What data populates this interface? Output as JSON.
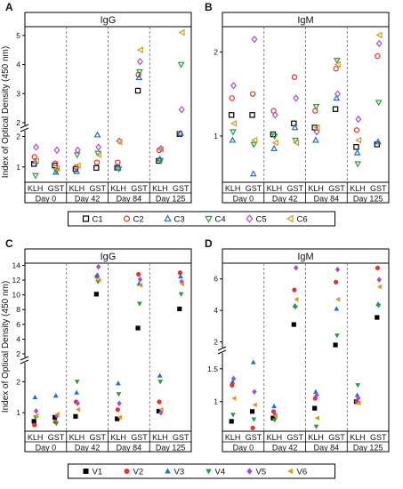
{
  "figure": {
    "y_axis_label": "Index of Optical Density (450 nm)",
    "legend_top": [
      "C1",
      "C2",
      "C3",
      "C4",
      "C5",
      "C6"
    ],
    "legend_bottom": [
      "V1",
      "V2",
      "V3",
      "V4",
      "V5",
      "V6"
    ]
  },
  "chart_data": [
    {
      "type": "scatter",
      "panel_letter": "A",
      "title": "IgG",
      "ylabel": "Index of Optical Density (450 nm)",
      "group_labels": [
        "Day 0",
        "Day 42",
        "Day 84",
        "Day 125"
      ],
      "category_labels": [
        "KLH",
        "GST"
      ],
      "lower_ylim": [
        0.5,
        2.1
      ],
      "upper_ylim": [
        2.0,
        5.3
      ],
      "lower_ticks": [
        1,
        2
      ],
      "upper_ticks": [
        2,
        3,
        4,
        5
      ],
      "series": [
        {
          "name": "C1",
          "values": [
            [
              1.1,
              1.05
            ],
            [
              0.93,
              0.97
            ],
            [
              0.97,
              3.1
            ],
            [
              1.2,
              2.08
            ]
          ]
        },
        {
          "name": "C2",
          "values": [
            [
              1.33,
              1.12
            ],
            [
              1.0,
              1.15
            ],
            [
              1.15,
              3.65
            ],
            [
              1.55,
              2.1
            ]
          ]
        },
        {
          "name": "C3",
          "values": [
            [
              1.18,
              0.83
            ],
            [
              0.85,
              2.05
            ],
            [
              0.96,
              3.55
            ],
            [
              1.26,
              2.1
            ]
          ]
        },
        {
          "name": "C4",
          "values": [
            [
              0.72,
              0.88
            ],
            [
              1.4,
              1.45
            ],
            [
              0.94,
              3.75
            ],
            [
              1.22,
              4.0
            ]
          ]
        },
        {
          "name": "C5",
          "values": [
            [
              1.65,
              1.55
            ],
            [
              1.55,
              1.65
            ],
            [
              1.85,
              4.1
            ],
            [
              1.6,
              2.45
            ]
          ]
        },
        {
          "name": "C6",
          "values": [
            [
              1.2,
              0.95
            ],
            [
              1.05,
              1.4
            ],
            [
              1.82,
              4.5
            ],
            [
              1.58,
              5.1
            ]
          ]
        }
      ]
    },
    {
      "type": "scatter",
      "panel_letter": "B",
      "title": "IgM",
      "ylabel": "",
      "group_labels": [
        "Day 0",
        "Day 42",
        "Day 84",
        "Day 125"
      ],
      "category_labels": [
        "KLH",
        "GST"
      ],
      "lower_ylim": [
        0.45,
        2.3
      ],
      "upper_ylim": [],
      "lower_ticks": [
        1,
        2
      ],
      "upper_ticks": [],
      "series": [
        {
          "name": "C1",
          "values": [
            [
              1.25,
              1.25
            ],
            [
              1.02,
              1.15
            ],
            [
              1.1,
              1.32
            ],
            [
              0.87,
              0.9
            ]
          ]
        },
        {
          "name": "C2",
          "values": [
            [
              1.45,
              1.5
            ],
            [
              1.3,
              1.7
            ],
            [
              1.3,
              1.8
            ],
            [
              1.07,
              1.95
            ]
          ]
        },
        {
          "name": "C3",
          "values": [
            [
              0.95,
              0.55
            ],
            [
              0.85,
              1.1
            ],
            [
              0.95,
              1.45
            ],
            [
              0.8,
              0.93
            ]
          ]
        },
        {
          "name": "C4",
          "values": [
            [
              1.05,
              0.9
            ],
            [
              1.0,
              0.95
            ],
            [
              1.35,
              1.9
            ],
            [
              0.67,
              1.4
            ]
          ]
        },
        {
          "name": "C5",
          "values": [
            [
              1.6,
              2.15
            ],
            [
              1.25,
              1.45
            ],
            [
              1.05,
              1.5
            ],
            [
              1.2,
              2.1
            ]
          ]
        },
        {
          "name": "C6",
          "values": [
            [
              1.15,
              0.95
            ],
            [
              0.92,
              0.92
            ],
            [
              1.1,
              1.85
            ],
            [
              0.95,
              2.2
            ]
          ]
        }
      ]
    },
    {
      "type": "scatter",
      "panel_letter": "C",
      "title": "IgG",
      "ylabel": "Index of Optical Density (450 nm)",
      "group_labels": [
        "Day 0",
        "Day 42",
        "Day 84",
        "Day 125"
      ],
      "category_labels": [
        "KLH",
        "GST"
      ],
      "lower_ylim": [
        0.4,
        2.5
      ],
      "upper_ylim": [
        2.0,
        14.3
      ],
      "lower_ticks": [
        1,
        2
      ],
      "upper_ticks": [
        2,
        4,
        6,
        8,
        10,
        12,
        14
      ],
      "series": [
        {
          "name": "V1",
          "values": [
            [
              0.72,
              0.85
            ],
            [
              0.88,
              10.1
            ],
            [
              0.8,
              5.5
            ],
            [
              1.05,
              8.1
            ]
          ]
        },
        {
          "name": "V2",
          "values": [
            [
              0.6,
              0.7
            ],
            [
              1.35,
              12.5
            ],
            [
              1.1,
              12.8
            ],
            [
              1.35,
              13.0
            ]
          ]
        },
        {
          "name": "V3",
          "values": [
            [
              1.5,
              1.55
            ],
            [
              1.65,
              12.7
            ],
            [
              1.95,
              11.5
            ],
            [
              2.2,
              12.5
            ]
          ]
        },
        {
          "name": "V4",
          "values": [
            [
              0.85,
              0.65
            ],
            [
              2.0,
              11.8
            ],
            [
              1.6,
              8.8
            ],
            [
              2.0,
              10.1
            ]
          ]
        },
        {
          "name": "V5",
          "values": [
            [
              1.05,
              0.9
            ],
            [
              1.3,
              13.8
            ],
            [
              1.3,
              12.1
            ],
            [
              1.0,
              11.8
            ]
          ]
        },
        {
          "name": "V6",
          "values": [
            [
              0.9,
              0.95
            ],
            [
              1.1,
              12.0
            ],
            [
              0.85,
              11.3
            ],
            [
              1.1,
              11.5
            ]
          ]
        }
      ]
    },
    {
      "type": "scatter",
      "panel_letter": "D",
      "title": "IgM",
      "ylabel": "",
      "group_labels": [
        "Day 0",
        "Day 42",
        "Day 84",
        "Day 125"
      ],
      "category_labels": [
        "KLH",
        "GST"
      ],
      "lower_ylim": [
        0.55,
        1.7
      ],
      "upper_ylim": [
        1.8,
        7.0
      ],
      "lower_ticks": [
        1.0,
        1.5
      ],
      "upper_ticks": [
        2,
        4,
        6
      ],
      "series": [
        {
          "name": "V1",
          "values": [
            [
              0.7,
              0.85
            ],
            [
              0.75,
              3.1
            ],
            [
              0.9,
              1.8
            ],
            [
              1.0,
              3.55
            ]
          ]
        },
        {
          "name": "V2",
          "values": [
            [
              1.25,
              0.6
            ],
            [
              0.85,
              5.3
            ],
            [
              1.05,
              5.8
            ],
            [
              1.0,
              6.7
            ]
          ]
        },
        {
          "name": "V3",
          "values": [
            [
              1.3,
              1.6
            ],
            [
              0.93,
              4.3
            ],
            [
              1.15,
              4.1
            ],
            [
              1.1,
              4.4
            ]
          ]
        },
        {
          "name": "V4",
          "values": [
            [
              0.8,
              0.73
            ],
            [
              0.72,
              4.2
            ],
            [
              0.62,
              2.4
            ],
            [
              1.25,
              4.3
            ]
          ]
        },
        {
          "name": "V5",
          "values": [
            [
              1.35,
              1.15
            ],
            [
              0.8,
              6.7
            ],
            [
              1.1,
              6.6
            ],
            [
              1.05,
              5.95
            ]
          ]
        },
        {
          "name": "V6",
          "values": [
            [
              1.05,
              0.95
            ],
            [
              0.78,
              4.7
            ],
            [
              0.75,
              4.7
            ],
            [
              0.98,
              5.5
            ]
          ]
        }
      ]
    }
  ]
}
